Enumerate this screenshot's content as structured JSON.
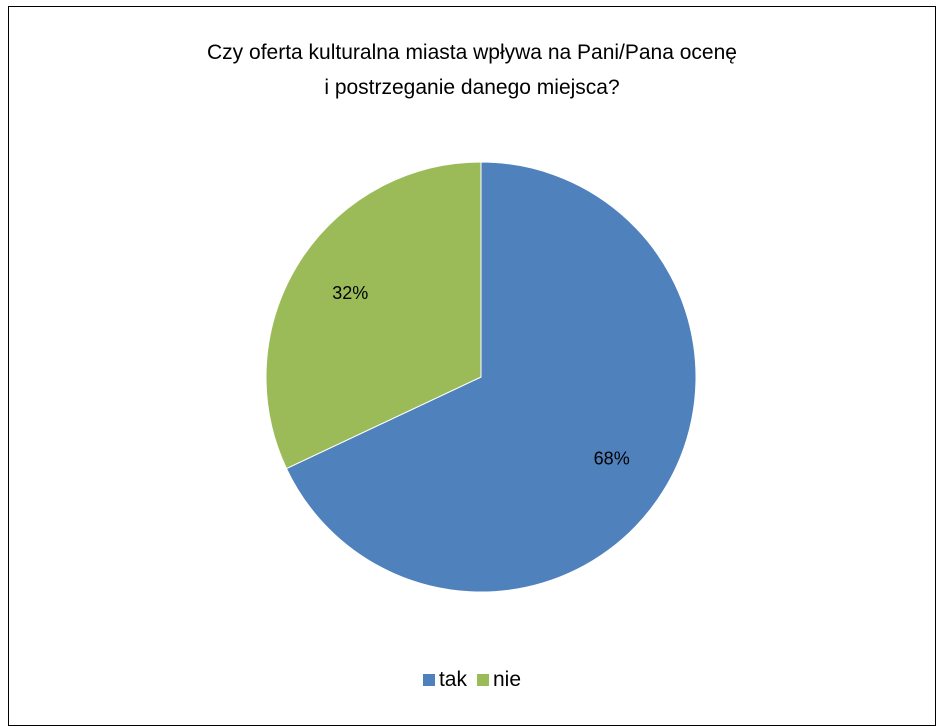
{
  "chart_data": {
    "type": "pie",
    "title_lines": [
      "Czy oferta kulturalna miasta wpływa na Pani/Pana ocenę",
      "i postrzeganie danego miejsca?"
    ],
    "categories": [
      "tak",
      "nie"
    ],
    "values": [
      68,
      32
    ],
    "data_labels": [
      "68%",
      "32%"
    ],
    "colors": [
      "#4F81BD",
      "#9BBB59"
    ],
    "legend_position": "bottom"
  }
}
